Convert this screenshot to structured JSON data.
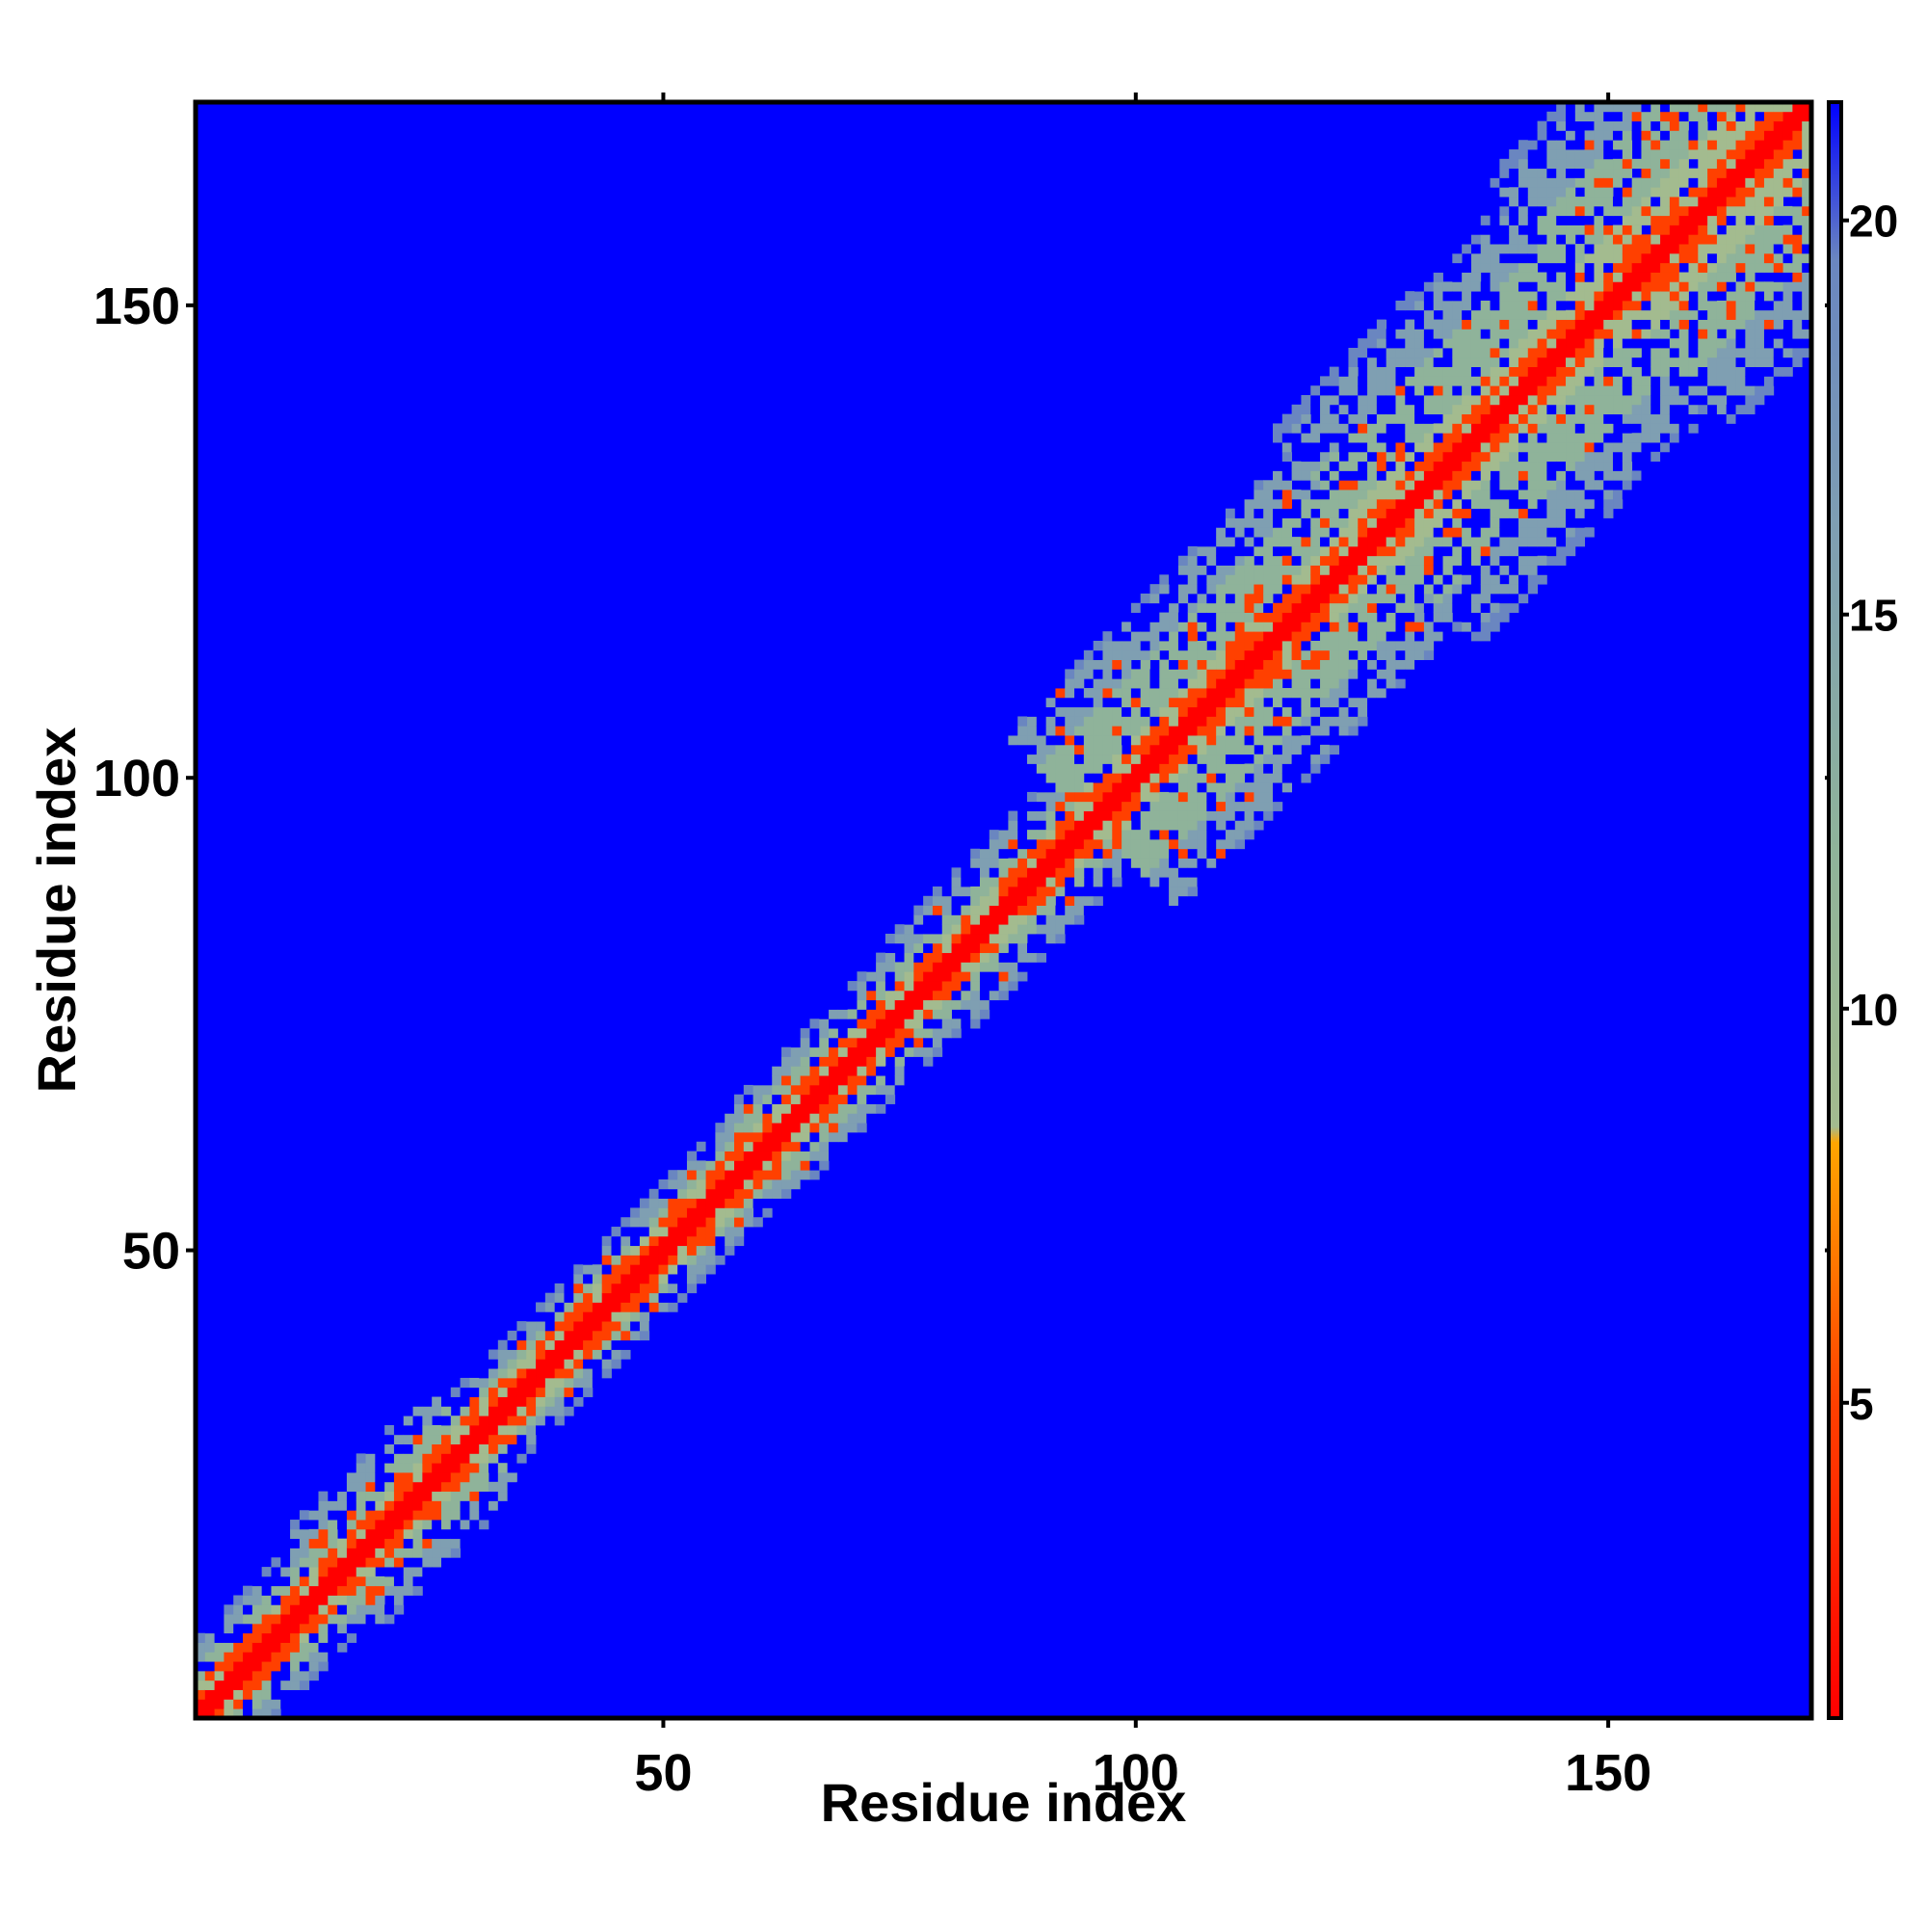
{
  "chart_data": {
    "type": "heatmap",
    "title": "",
    "xlabel": "Residue index",
    "ylabel": "Residue index",
    "xlim": [
      1,
      171
    ],
    "ylim": [
      1,
      171
    ],
    "x_ticks": [
      50,
      100,
      150
    ],
    "y_ticks": [
      50,
      100,
      150
    ],
    "x_tick_labels": [
      "50",
      "100",
      "150"
    ],
    "y_tick_labels": [
      "50",
      "100",
      "150"
    ],
    "colorbar": {
      "range": [
        1,
        21.5
      ],
      "ticks": [
        5,
        10,
        15,
        20
      ],
      "tick_labels": [
        "5",
        "10",
        "15",
        "20"
      ],
      "placement": "right",
      "stops": [
        {
          "value": 1,
          "color": "#ff0000"
        },
        {
          "value": 5,
          "color": "#ff4000"
        },
        {
          "value": 8.3,
          "color": "#ffa500"
        },
        {
          "value": 8.5,
          "color": "#a3bb8f"
        },
        {
          "value": 12,
          "color": "#8fb39a"
        },
        {
          "value": 16,
          "color": "#7f9fb2"
        },
        {
          "value": 19.5,
          "color": "#6a86c0"
        },
        {
          "value": 21.5,
          "color": "#0000ff"
        }
      ]
    },
    "background_color": "#0000ff",
    "values_description_note": "",
    "diagonal": {
      "value": 2,
      "color": "#ff0000"
    },
    "contact_band": [
      {
        "from": 1,
        "to": 15,
        "half_width": 8
      },
      {
        "from": 15,
        "to": 30,
        "half_width": 10
      },
      {
        "from": 30,
        "to": 60,
        "half_width": 7
      },
      {
        "from": 60,
        "to": 78,
        "half_width": 8
      },
      {
        "from": 78,
        "to": 95,
        "half_width": 9
      },
      {
        "from": 95,
        "to": 125,
        "half_width": 18
      },
      {
        "from": 125,
        "to": 150,
        "half_width": 22
      },
      {
        "from": 150,
        "to": 171,
        "half_width": 26
      }
    ],
    "grid": false,
    "legend": "none"
  }
}
